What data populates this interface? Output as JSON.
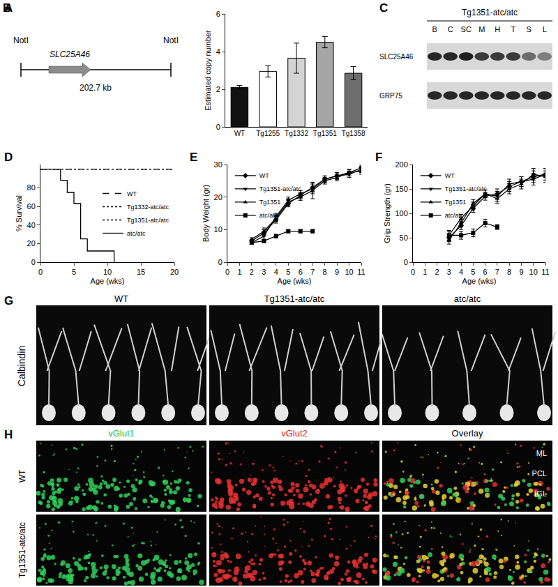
{
  "diagram": {
    "panel": "A",
    "left_site": "NotI",
    "right_site": "NotI",
    "gene": "SLC25A46",
    "size": "202.7 kb"
  },
  "chart_data": [
    {
      "panel": "B",
      "type": "bar",
      "categories": [
        "WT",
        "Tg1255",
        "Tg1332",
        "Tg1351",
        "Tg1358"
      ],
      "values": [
        2.1,
        2.95,
        3.65,
        4.5,
        2.85
      ],
      "errors": [
        0.1,
        0.3,
        0.8,
        0.3,
        0.35
      ],
      "colors": [
        "#111111",
        "#ffffff",
        "#d4d4d4",
        "#a6a6a6",
        "#6e6e6e"
      ],
      "ylabel": "Estimated copy number",
      "ylim": [
        0,
        6
      ],
      "yticks": [
        0,
        2,
        4,
        6
      ]
    },
    {
      "panel": "D",
      "type": "line",
      "xlabel": "Age (wks)",
      "ylabel": "% Survival",
      "xlim": [
        0,
        20
      ],
      "xticks": [
        0,
        5,
        10,
        15,
        20
      ],
      "ylim": [
        0,
        105
      ],
      "yticks": [
        0,
        20,
        40,
        60,
        80
      ],
      "legend": "center right",
      "series": [
        {
          "name": "WT",
          "color": "#000000",
          "line_style": "dashed",
          "x": [
            0,
            20
          ],
          "values": [
            100,
            100
          ]
        },
        {
          "name": "Tg1332-atc/atc",
          "color": "#000000",
          "line_style": "dotted",
          "x": [
            0,
            20
          ],
          "values": [
            100,
            100
          ]
        },
        {
          "name": "Tg1351-atc/atc",
          "color": "#000000",
          "line_style": "dotted",
          "x": [
            0,
            20
          ],
          "values": [
            100,
            100
          ]
        },
        {
          "name": "atc/atc",
          "color": "#000000",
          "line_style": "solid",
          "type": "step",
          "x": [
            0,
            3,
            4,
            5,
            6,
            7,
            11
          ],
          "values": [
            100,
            88,
            75,
            63,
            25,
            12,
            0
          ]
        }
      ]
    },
    {
      "panel": "E",
      "type": "line",
      "xlabel": "Age (wks)",
      "ylabel": "Body Weight (gr)",
      "xlim": [
        0,
        11
      ],
      "xticks": [
        0,
        1,
        2,
        3,
        4,
        5,
        6,
        7,
        8,
        9,
        10,
        11
      ],
      "ylim": [
        0,
        30
      ],
      "yticks": [
        0,
        10,
        20,
        30
      ],
      "legend": "top left",
      "series": [
        {
          "name": "WT",
          "color": "#000000",
          "marker": "diamond",
          "line_style": "solid",
          "x": [
            2,
            3,
            4,
            5,
            6,
            7,
            8,
            9,
            10,
            11
          ],
          "values": [
            6.5,
            9,
            13,
            18,
            20.5,
            23,
            25.5,
            26.5,
            27.5,
            29
          ],
          "errors": [
            0.5,
            1,
            1,
            1,
            1,
            1.5,
            1,
            1,
            1,
            1
          ]
        },
        {
          "name": "Tg1351-atc/atc",
          "color": "#000000",
          "marker": "triangle-down",
          "line_style": "solid",
          "x": [
            2,
            3,
            4,
            5,
            6,
            7,
            8,
            9,
            10,
            11
          ],
          "values": [
            6,
            8,
            14,
            19,
            21,
            22.5,
            25.5,
            26.5,
            27,
            28.5
          ],
          "errors": [
            0.5,
            1,
            1,
            1,
            1,
            1.5,
            1,
            1,
            1,
            1
          ]
        },
        {
          "name": "Tg1351",
          "color": "#000000",
          "marker": "triangle-up",
          "line_style": "solid",
          "x": [
            2,
            3,
            4,
            5,
            6,
            7,
            8,
            9,
            10,
            11
          ],
          "values": [
            7,
            9.5,
            13.5,
            18.5,
            20,
            22,
            25,
            26,
            27.5,
            28
          ],
          "errors": [
            0.5,
            1,
            1,
            1,
            1,
            2.5,
            1,
            1,
            1,
            1
          ]
        },
        {
          "name": "atc/atc",
          "color": "#000000",
          "marker": "square",
          "line_style": "solid",
          "x": [
            2,
            3,
            4,
            5,
            6,
            7
          ],
          "values": [
            6,
            6.5,
            8,
            9.5,
            9.5,
            9.5
          ],
          "errors": [
            0.5,
            0.5,
            0.5,
            0.5,
            0.5,
            0.5
          ]
        }
      ]
    },
    {
      "panel": "F",
      "type": "line",
      "xlabel": "Age (wks)",
      "ylabel": "Grip Strength (gr)",
      "xlim": [
        0,
        11
      ],
      "xticks": [
        0,
        1,
        2,
        3,
        4,
        5,
        6,
        7,
        8,
        9,
        10,
        11
      ],
      "ylim": [
        0,
        200
      ],
      "yticks": [
        0,
        50,
        100,
        150,
        200
      ],
      "legend": "top left",
      "series": [
        {
          "name": "WT",
          "color": "#000000",
          "marker": "diamond",
          "line_style": "solid",
          "x": [
            3,
            4,
            5,
            6,
            7,
            8,
            9,
            10,
            11
          ],
          "values": [
            50,
            75,
            110,
            135,
            140,
            155,
            165,
            175,
            180
          ],
          "errors": [
            8,
            8,
            8,
            8,
            10,
            10,
            10,
            12,
            12
          ]
        },
        {
          "name": "Tg1351-atc/atc",
          "color": "#000000",
          "marker": "triangle-down",
          "line_style": "solid",
          "x": [
            3,
            4,
            5,
            6,
            7,
            8,
            9,
            10,
            11
          ],
          "values": [
            55,
            90,
            115,
            140,
            135,
            160,
            165,
            170,
            180
          ],
          "errors": [
            8,
            8,
            8,
            8,
            10,
            10,
            10,
            12,
            12
          ]
        },
        {
          "name": "Tg1351",
          "color": "#000000",
          "marker": "triangle-up",
          "line_style": "solid",
          "x": [
            3,
            4,
            5,
            6,
            7,
            8,
            9,
            10,
            11
          ],
          "values": [
            45,
            80,
            120,
            140,
            130,
            150,
            160,
            180,
            175
          ],
          "errors": [
            8,
            8,
            8,
            8,
            10,
            10,
            10,
            12,
            12
          ]
        },
        {
          "name": "atc/atc",
          "color": "#000000",
          "marker": "square",
          "line_style": "solid",
          "x": [
            3,
            4,
            5,
            6,
            7
          ],
          "values": [
            55,
            55,
            60,
            80,
            72
          ],
          "errors": [
            10,
            8,
            8,
            8,
            5
          ]
        }
      ]
    }
  ],
  "blot": {
    "panel": "C",
    "title": "Tg1351-atc/atc",
    "lanes": [
      "B",
      "C",
      "SC",
      "M",
      "H",
      "T",
      "S",
      "L"
    ],
    "rows": [
      "SLC25A46",
      "GRP75"
    ]
  },
  "images": [
    {
      "panel": "G",
      "stain": "Calbindin",
      "columns": [
        "WT",
        "Tg1351-atc/atc",
        "atc/atc"
      ]
    },
    {
      "panel": "H",
      "columns": [
        {
          "name": "vGlut1",
          "color": "#22c04a"
        },
        {
          "name": "vGlut2",
          "color": "#e02020"
        },
        {
          "name": "Overlay",
          "color": "#000000"
        }
      ],
      "rows": [
        "WT",
        "Tg1351-atc/atc"
      ],
      "layers": [
        "ML",
        "PCL",
        "IGL"
      ]
    }
  ]
}
